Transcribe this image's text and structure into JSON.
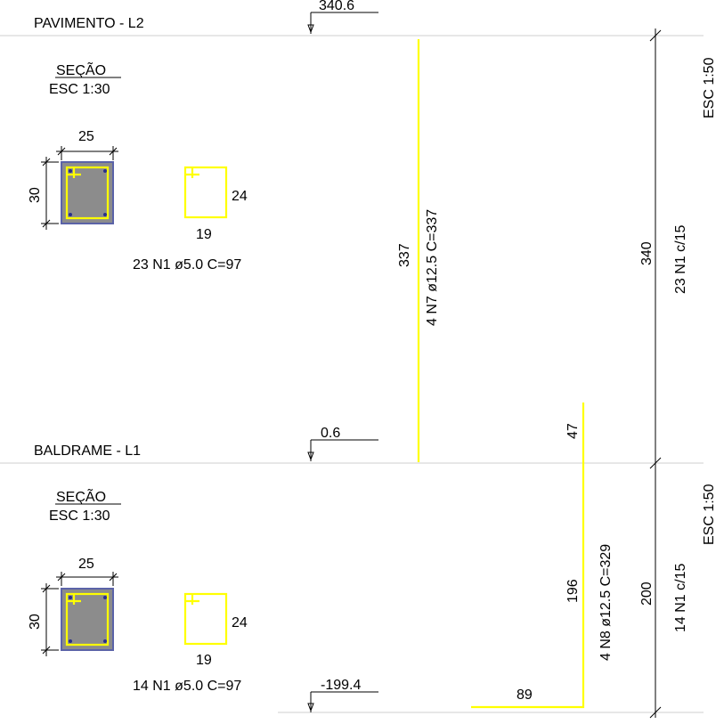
{
  "colors": {
    "rebar": "#ffff00",
    "section_fill": "#8c8c8c",
    "section_border": "#5b63a8",
    "bar_dot": "#2a2f8a",
    "level_line": "#cfcfcf"
  },
  "levels": [
    {
      "label": "PAVIMENTO - L2",
      "elevation": "340.6"
    },
    {
      "label": "BALDRAME - L1",
      "elevation": "0.6"
    }
  ],
  "bottom_elevation": "-199.4",
  "sections": [
    {
      "title": "SEÇÃO",
      "scale": "ESC 1:30",
      "width_dim": "25",
      "height_dim": "30",
      "stirrup_height": "24",
      "stirrup_width": "19",
      "stirrup_label": "23 N1 ø5.0 C=97"
    },
    {
      "title": "SEÇÃO",
      "scale": "ESC 1:30",
      "width_dim": "25",
      "height_dim": "30",
      "stirrup_height": "24",
      "stirrup_width": "19",
      "stirrup_label": "14 N1 ø5.0 C=97"
    }
  ],
  "upper_bar": {
    "length": "337",
    "label": "4 N7 ø12.5 C=337"
  },
  "lower_bar": {
    "vertical": "196",
    "hook_top": "47",
    "horizontal": "89",
    "label": "4 N8 ø12.5 C=329"
  },
  "stirrup_runs": [
    {
      "length": "340",
      "label": "23 N1 c/15",
      "scale": "ESC 1:50"
    },
    {
      "length": "200",
      "label": "14 N1 c/15",
      "scale": "ESC 1:50"
    }
  ]
}
